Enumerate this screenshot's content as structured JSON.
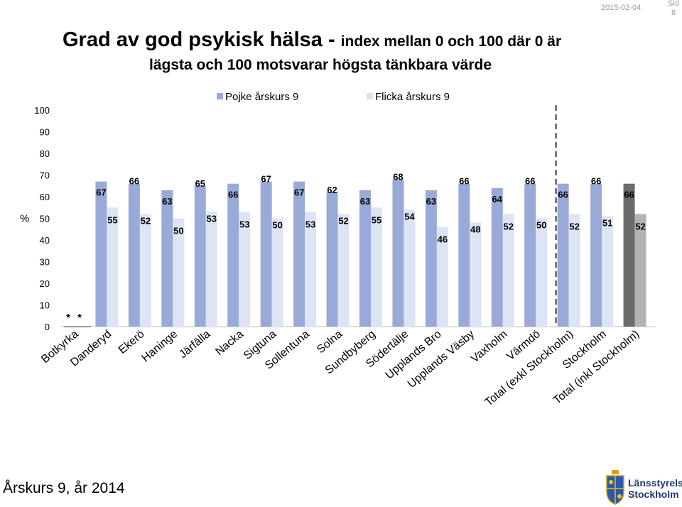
{
  "header": {
    "date": "2015-02-04",
    "sid_label": "Sid",
    "page_number": "8"
  },
  "title": {
    "main": "Grad av god psykisk hälsa - ",
    "rest_line1": "index mellan 0 och 100 där 0 är",
    "line2": "lägsta och 100 motsvarar högsta tänkbara värde"
  },
  "footer": {
    "text": "Årskurs 9, år 2014"
  },
  "logo": {
    "line1": "Länsstyrelsen",
    "line2": "Stockholm"
  },
  "colors": {
    "pojke": "#9aaad8",
    "flicka": "#dde4f4",
    "total_pojke": "#6b6b6b",
    "total_flicka": "#b3b3b3",
    "divider": "#000000",
    "accent_logo": "#1f3b72"
  },
  "chart_data": {
    "type": "bar",
    "ylabel": "%",
    "ylim": [
      0,
      100
    ],
    "yticks": [
      0,
      10,
      20,
      30,
      40,
      50,
      60,
      70,
      80,
      90,
      100
    ],
    "missing_marker": "*",
    "categories": [
      "Botkyrka",
      "Danderyd",
      "Ekerö",
      "Haninge",
      "Järfälla",
      "Nacka",
      "Sigtuna",
      "Sollentuna",
      "Solna",
      "Sundbyberg",
      "Södertälje",
      "Upplands Bro",
      "Upplands Väsby",
      "Vaxholm",
      "Värmdö",
      "Total (exkl Stockholm)",
      "Stockholm",
      "Total (inkl Stockholm)"
    ],
    "series": [
      {
        "name": "Pojke årskurs 9",
        "values": [
          null,
          67,
          66,
          63,
          65,
          66,
          67,
          67,
          62,
          63,
          68,
          63,
          66,
          64,
          66,
          66,
          66,
          66
        ]
      },
      {
        "name": "Flicka årskurs 9",
        "values": [
          null,
          55,
          52,
          50,
          53,
          53,
          50,
          53,
          52,
          55,
          54,
          46,
          48,
          52,
          50,
          52,
          51,
          52
        ]
      }
    ],
    "divider_after": "Värmdö",
    "highlight_category": "Total (inkl Stockholm)",
    "legend_position": "top"
  }
}
